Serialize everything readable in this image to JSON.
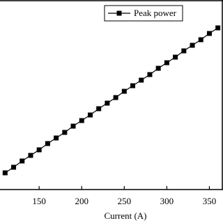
{
  "chart_data": {
    "type": "line",
    "x_label": "Current (A)",
    "x": [
      110,
      120,
      130,
      140,
      150,
      160,
      170,
      180,
      190,
      200,
      210,
      220,
      230,
      240,
      250,
      260,
      270,
      280,
      290,
      300,
      310,
      320,
      330,
      340,
      350,
      360
    ],
    "series": [
      {
        "name": "Peak power",
        "color": "#000000",
        "values": [
          24,
          32,
          41,
          49,
          57,
          66,
          74,
          82,
          91,
          99,
          107,
          116,
          124,
          132,
          141,
          149,
          157,
          165,
          174,
          182,
          190,
          199,
          207,
          215,
          224,
          232
        ]
      }
    ],
    "xlim": [
      104,
      366
    ],
    "xticks": [
      150,
      200,
      250,
      300,
      350
    ],
    "ylim": [
      0,
      272
    ],
    "legend": "top-right",
    "marker": "square"
  }
}
